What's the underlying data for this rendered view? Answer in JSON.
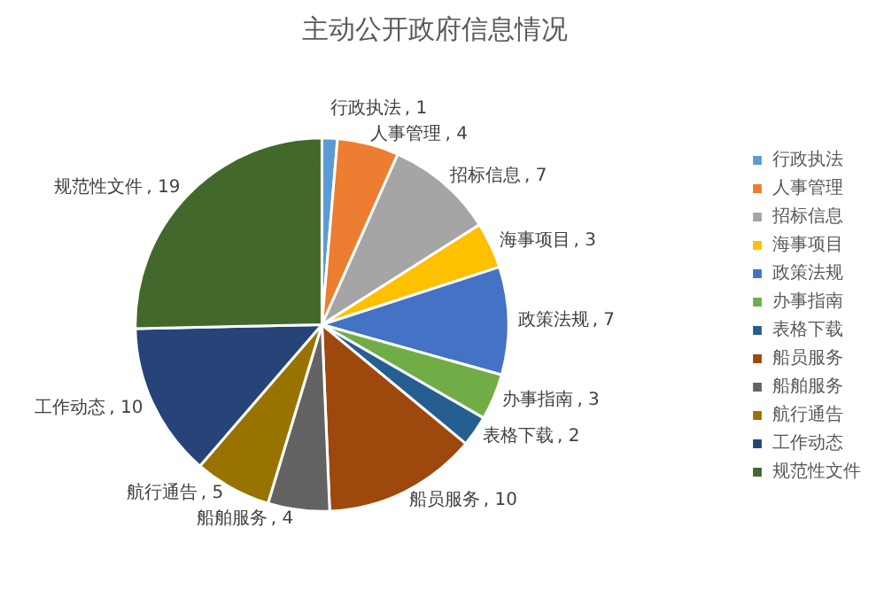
{
  "chart_data": {
    "type": "pie",
    "title": "主动公开政府信息情况",
    "categories": [
      "行政执法",
      "人事管理",
      "招标信息",
      "海事项目",
      "政策法规",
      "办事指南",
      "表格下载",
      "船员服务",
      "船舶服务",
      "航行通告",
      "工作动态",
      "规范性文件"
    ],
    "values": [
      1,
      4,
      7,
      3,
      7,
      3,
      2,
      10,
      4,
      5,
      10,
      19
    ],
    "colors": [
      "#5b9bd5",
      "#ed7d31",
      "#a5a5a5",
      "#ffc000",
      "#4472c4",
      "#70ad47",
      "#255e91",
      "#9e480e",
      "#636363",
      "#997300",
      "#264478",
      "#43682b"
    ],
    "value_labels": [
      ", 1",
      ", 4",
      ", 7",
      ", 3",
      ", 7",
      ", 3",
      ", 2",
      ", 10",
      ", 4",
      ", 5",
      ", 10",
      ", 19"
    ],
    "legend": "right"
  }
}
